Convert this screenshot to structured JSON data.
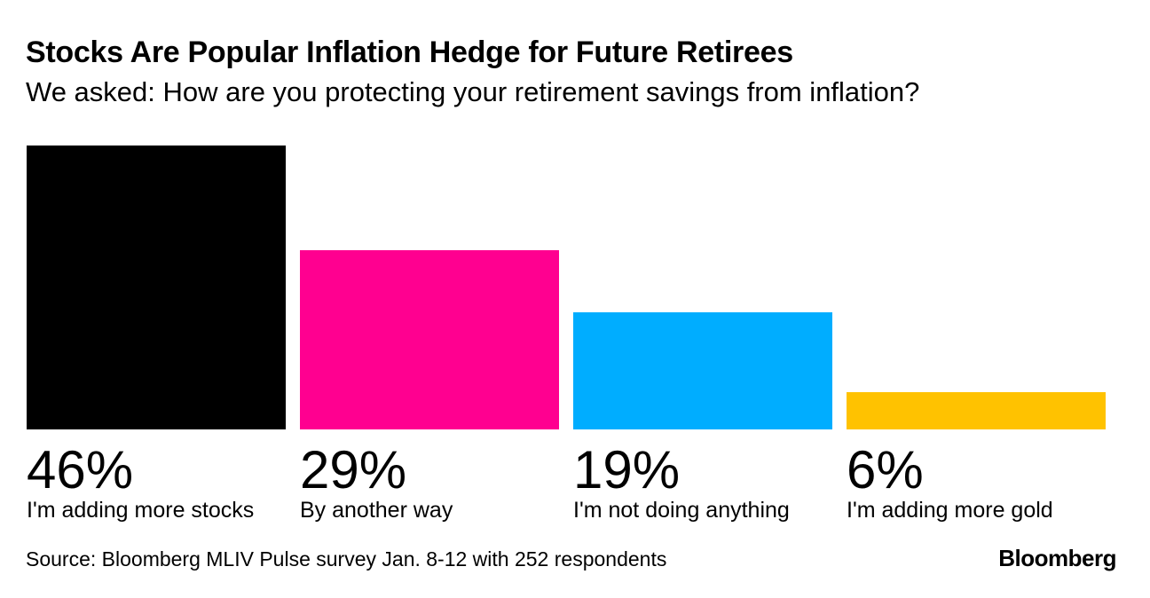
{
  "title": "Stocks Are Popular Inflation Hedge for Future Retirees",
  "subtitle": "We asked: How are you protecting your retirement savings from inflation?",
  "chart_data": {
    "type": "bar",
    "title": "Stocks Are Popular Inflation Hedge for Future Retirees",
    "subtitle": "We asked: How are you protecting your retirement savings from inflation?",
    "categories": [
      "I'm adding more stocks",
      "By another way",
      "I'm not doing anything",
      "I'm adding more gold"
    ],
    "values": [
      46,
      29,
      19,
      6
    ],
    "value_labels": [
      "46%",
      "29%",
      "19%",
      "6%"
    ],
    "colors": [
      "#000000",
      "#ff0090",
      "#00adff",
      "#ffc200"
    ],
    "unit": "%",
    "ylim": [
      0,
      46
    ],
    "grid": false,
    "legend": "none"
  },
  "source": "Source: Bloomberg MLIV Pulse survey Jan. 8-12 with 252 respondents",
  "logo": "Bloomberg"
}
